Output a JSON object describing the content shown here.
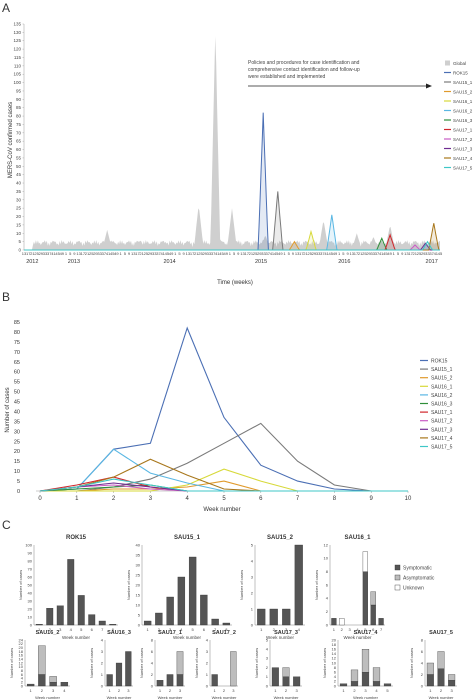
{
  "panels": {
    "a": "A",
    "b": "B",
    "c": "C"
  },
  "panelA": {
    "ylabel": "MERS-CoV confirmed cases",
    "xlabel": "Time (weeks)",
    "annotation": [
      "Policies and procedures for case identification and",
      "comprehensive contact identification and follow-up",
      "were established and implemented"
    ],
    "year_labels": [
      "2012",
      "2013",
      "2014",
      "2015",
      "2016",
      "2017"
    ]
  },
  "panelB": {
    "ylabel": "Number of cases",
    "xlabel": "Week number"
  },
  "panelC": {
    "legend": [
      "Symptomatic",
      "Asymptomatic",
      "Unknown"
    ],
    "ylabel_short": "Number of cases",
    "xlabel_short": "Week number"
  },
  "chart_data": [
    {
      "type": "area",
      "title": "",
      "xlabel": "Time (weeks)",
      "ylabel": "MERS-CoV confirmed cases",
      "ylim": [
        0,
        135
      ],
      "yticks": [
        0,
        5,
        10,
        15,
        20,
        25,
        30,
        35,
        40,
        45,
        50,
        55,
        60,
        65,
        70,
        75,
        80,
        85,
        90,
        95,
        100,
        105,
        110,
        115,
        120,
        125,
        130,
        135
      ],
      "years": [
        "2012",
        "2013",
        "2014",
        "2015",
        "2016",
        "2017"
      ],
      "series": [
        {
          "name": "Global",
          "color": "#cfcfcf",
          "peaks": [
            [
              0.05,
              2
            ],
            [
              0.2,
              12
            ],
            [
              0.28,
              6
            ],
            [
              0.34,
              5
            ],
            [
              0.38,
              3
            ],
            [
              0.42,
              27
            ],
            [
              0.46,
              133
            ],
            [
              0.5,
              25
            ],
            [
              0.58,
              9
            ],
            [
              0.64,
              5
            ],
            [
              0.68,
              5
            ],
            [
              0.72,
              18
            ],
            [
              0.76,
              3
            ],
            [
              0.8,
              10
            ],
            [
              0.84,
              8
            ],
            [
              0.88,
              15
            ],
            [
              0.94,
              4
            ],
            [
              0.99,
              4
            ]
          ]
        },
        {
          "name": "ROK15",
          "color": "#4b6fb4",
          "peaks": [
            [
              0.575,
              82
            ]
          ]
        },
        {
          "name": "SAU15_1",
          "color": "#7a7a7a",
          "peaks": [
            [
              0.61,
              35
            ]
          ]
        },
        {
          "name": "SAU15_2",
          "color": "#e09a2c",
          "peaks": [
            [
              0.65,
              5
            ]
          ]
        },
        {
          "name": "SAU16_1",
          "color": "#d7d93a",
          "peaks": [
            [
              0.69,
              11
            ]
          ]
        },
        {
          "name": "SAU16_2",
          "color": "#5ab7e3",
          "peaks": [
            [
              0.74,
              21
            ]
          ]
        },
        {
          "name": "SAU16_3",
          "color": "#2f8f3a",
          "peaks": [
            [
              0.86,
              7
            ]
          ]
        },
        {
          "name": "SAU17_1",
          "color": "#d0262b",
          "peaks": [
            [
              0.88,
              9
            ]
          ]
        },
        {
          "name": "SAU17_2",
          "color": "#c95cc4",
          "peaks": [
            [
              0.94,
              3
            ]
          ]
        },
        {
          "name": "SAU17_3",
          "color": "#6f2c91",
          "peaks": [
            [
              0.965,
              4
            ]
          ]
        },
        {
          "name": "SAU17_4",
          "color": "#a8771c",
          "peaks": [
            [
              0.985,
              16
            ]
          ]
        },
        {
          "name": "SAU17_5",
          "color": "#3fc7c7",
          "peaks": [
            [
              0.97,
              5
            ]
          ]
        }
      ]
    },
    {
      "type": "line",
      "title": "",
      "xlabel": "Week number",
      "ylabel": "Number of cases",
      "xlim": [
        0,
        10
      ],
      "ylim": [
        0,
        85
      ],
      "x": [
        0,
        1,
        2,
        3,
        4,
        5,
        6,
        7,
        8,
        9,
        10
      ],
      "yticks": [
        0,
        5,
        10,
        15,
        20,
        25,
        30,
        35,
        40,
        45,
        50,
        55,
        60,
        65,
        70,
        75,
        80,
        85
      ],
      "series": [
        {
          "name": "ROK15",
          "color": "#4b6fb4",
          "values": [
            0,
            1,
            21,
            24,
            82,
            37,
            13,
            5,
            1,
            0,
            0
          ]
        },
        {
          "name": "SAU15_1",
          "color": "#7a7a7a",
          "values": [
            0,
            0,
            2,
            6,
            14,
            24,
            34,
            15,
            3,
            0,
            0
          ]
        },
        {
          "name": "SAU15_2",
          "color": "#e09a2c",
          "values": [
            0,
            0,
            1,
            1,
            2,
            5,
            0,
            0,
            0,
            0,
            0
          ]
        },
        {
          "name": "SAU16_1",
          "color": "#d7d93a",
          "values": [
            0,
            0,
            0,
            0,
            3,
            11,
            5,
            0,
            0,
            0,
            0
          ]
        },
        {
          "name": "SAU16_2",
          "color": "#5ab7e3",
          "values": [
            0,
            1,
            21,
            9,
            4,
            0,
            0,
            0,
            0,
            0,
            0
          ]
        },
        {
          "name": "SAU16_3",
          "color": "#2f8f3a",
          "values": [
            0,
            1,
            2,
            3,
            0,
            0,
            0,
            0,
            0,
            0,
            0
          ]
        },
        {
          "name": "SAU17_1",
          "color": "#d0262b",
          "values": [
            0,
            3,
            7,
            2,
            0,
            0,
            0,
            0,
            0,
            0,
            0
          ]
        },
        {
          "name": "SAU17_2",
          "color": "#c95cc4",
          "values": [
            0,
            2,
            3,
            1,
            0,
            0,
            0,
            0,
            0,
            0,
            0
          ]
        },
        {
          "name": "SAU17_3",
          "color": "#6f2c91",
          "values": [
            0,
            2,
            4,
            2,
            0,
            0,
            0,
            0,
            0,
            0,
            0
          ]
        },
        {
          "name": "SAU17_4",
          "color": "#a8771c",
          "values": [
            0,
            2,
            7,
            16,
            8,
            1,
            0,
            0,
            0,
            0,
            0
          ]
        },
        {
          "name": "SAU17_5",
          "color": "#3fc7c7",
          "values": [
            0,
            2,
            6,
            3,
            0,
            0,
            0,
            0,
            0,
            0,
            0
          ]
        }
      ]
    },
    {
      "type": "bar",
      "title": "ROK15",
      "xlabel": "Week number",
      "ylabel": "Number of cases",
      "ylim": [
        0,
        100
      ],
      "yticks": [
        0,
        10,
        20,
        30,
        40,
        50,
        60,
        70,
        80,
        90,
        100
      ],
      "categories": [
        "1",
        "2",
        "3",
        "4",
        "5",
        "6",
        "7",
        "8"
      ],
      "series": [
        {
          "name": "Symptomatic",
          "values": [
            1,
            21,
            24,
            82,
            37,
            13,
            5,
            1
          ]
        }
      ]
    },
    {
      "type": "bar",
      "title": "SAU15_1",
      "xlabel": "Week number",
      "ylabel": "Number of cases",
      "ylim": [
        0,
        40
      ],
      "yticks": [
        0,
        5,
        10,
        15,
        20,
        25,
        30,
        35,
        40
      ],
      "categories": [
        "1",
        "2",
        "3",
        "4",
        "5",
        "6",
        "7",
        "8"
      ],
      "series": [
        {
          "name": "Symptomatic",
          "values": [
            2,
            6,
            14,
            24,
            34,
            15,
            3,
            1
          ]
        }
      ]
    },
    {
      "type": "bar",
      "title": "SAU15_2",
      "xlabel": "Week number",
      "ylabel": "Number of cases",
      "ylim": [
        0,
        5
      ],
      "yticks": [
        0,
        1,
        2,
        3,
        4,
        5
      ],
      "categories": [
        "1",
        "2",
        "3",
        "4"
      ],
      "series": [
        {
          "name": "Symptomatic",
          "values": [
            1,
            1,
            1,
            5
          ]
        }
      ]
    },
    {
      "type": "bar",
      "title": "SAU16_1",
      "xlabel": "Week number",
      "ylabel": "Number of cases",
      "ylim": [
        0,
        12
      ],
      "yticks": [
        0,
        2,
        4,
        6,
        8,
        10,
        12
      ],
      "categories": [
        "1",
        "2",
        "3",
        "4",
        "5",
        "6",
        "7"
      ],
      "series": [
        {
          "name": "Symptomatic",
          "values": [
            1,
            0,
            0,
            0,
            8,
            3,
            1
          ]
        },
        {
          "name": "Asymptomatic",
          "values": [
            0,
            0,
            0,
            0,
            0,
            2,
            0
          ]
        },
        {
          "name": "Unknown",
          "values": [
            0,
            1,
            0,
            0,
            3,
            0,
            0
          ]
        }
      ]
    },
    {
      "type": "bar",
      "title": "SAU16_2",
      "xlabel": "Week number",
      "ylabel": "Number of cases",
      "ylim": [
        0,
        24
      ],
      "yticks": [
        0,
        2,
        4,
        6,
        8,
        10,
        12,
        14,
        16,
        18,
        20,
        22,
        24
      ],
      "categories": [
        "1",
        "2",
        "3",
        "4"
      ],
      "series": [
        {
          "name": "Symptomatic",
          "values": [
            1,
            6,
            2,
            2
          ]
        },
        {
          "name": "Asymptomatic",
          "values": [
            0,
            15,
            3,
            0
          ]
        }
      ]
    },
    {
      "type": "bar",
      "title": "SAU16_3",
      "xlabel": "Week number",
      "ylabel": "Number of cases",
      "ylim": [
        0,
        4
      ],
      "yticks": [
        0,
        1,
        2,
        3,
        4
      ],
      "categories": [
        "1",
        "2",
        "3"
      ],
      "series": [
        {
          "name": "Symptomatic",
          "values": [
            1,
            2,
            3
          ]
        }
      ]
    },
    {
      "type": "bar",
      "title": "SAU17_1",
      "xlabel": "Week number",
      "ylabel": "Number of cases",
      "ylim": [
        0,
        8
      ],
      "yticks": [
        0,
        2,
        4,
        6,
        8
      ],
      "categories": [
        "1",
        "2",
        "3"
      ],
      "series": [
        {
          "name": "Symptomatic",
          "values": [
            1,
            2,
            2
          ]
        },
        {
          "name": "Asymptomatic",
          "values": [
            0,
            0,
            4
          ]
        }
      ]
    },
    {
      "type": "bar",
      "title": "SAU17_2",
      "xlabel": "Week number",
      "ylabel": "Number of cases",
      "ylim": [
        0,
        4
      ],
      "yticks": [
        0,
        1,
        2,
        3,
        4
      ],
      "categories": [
        "1",
        "2",
        "3"
      ],
      "series": [
        {
          "name": "Symptomatic",
          "values": [
            1,
            0,
            0
          ]
        },
        {
          "name": "Asymptomatic",
          "values": [
            0,
            0,
            3
          ]
        }
      ]
    },
    {
      "type": "bar",
      "title": "SAU17_3",
      "xlabel": "Week number",
      "ylabel": "Number of cases",
      "ylim": [
        0,
        5
      ],
      "yticks": [
        0,
        1,
        2,
        3,
        4,
        5
      ],
      "categories": [
        "1",
        "2",
        "3"
      ],
      "series": [
        {
          "name": "Symptomatic",
          "values": [
            2,
            1,
            1
          ]
        },
        {
          "name": "Asymptomatic",
          "values": [
            0,
            1,
            0
          ]
        }
      ]
    },
    {
      "type": "bar",
      "title": "SAU17_4",
      "xlabel": "Week number",
      "ylabel": "Number of cases",
      "ylim": [
        0,
        20
      ],
      "yticks": [
        0,
        2,
        4,
        6,
        8,
        10,
        12,
        14,
        16,
        18,
        20
      ],
      "categories": [
        "1",
        "2",
        "3",
        "4",
        "5"
      ],
      "series": [
        {
          "name": "Symptomatic",
          "values": [
            1,
            2,
            6,
            2,
            1
          ]
        },
        {
          "name": "Asymptomatic",
          "values": [
            0,
            5,
            10,
            6,
            0
          ]
        }
      ]
    },
    {
      "type": "bar",
      "title": "SAU17_5",
      "xlabel": "Week number",
      "ylabel": "Number of cases",
      "ylim": [
        0,
        8
      ],
      "yticks": [
        0,
        2,
        4,
        6,
        8
      ],
      "categories": [
        "1",
        "2",
        "3"
      ],
      "series": [
        {
          "name": "Symptomatic",
          "values": [
            2,
            3,
            1
          ]
        },
        {
          "name": "Asymptomatic",
          "values": [
            2,
            3,
            1
          ]
        }
      ]
    }
  ]
}
